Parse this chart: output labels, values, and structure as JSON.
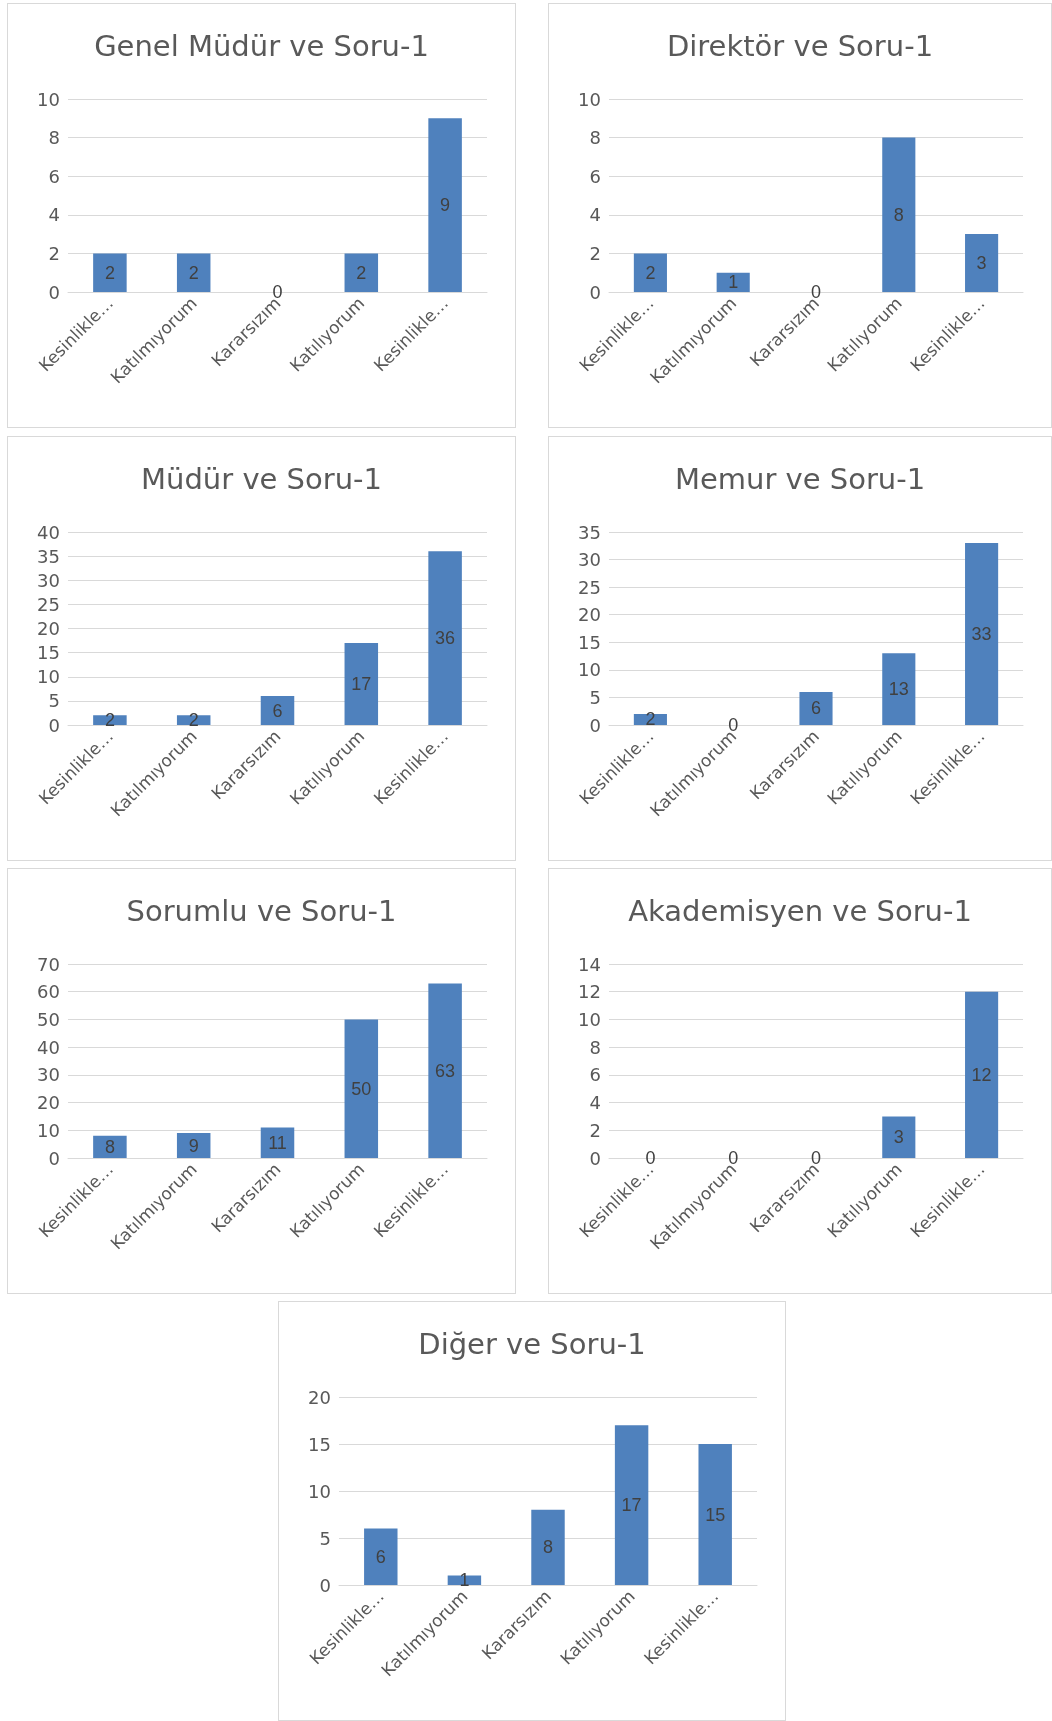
{
  "chart_data": [
    {
      "type": "bar",
      "title": "Genel Müdür ve Soru-1",
      "categories": [
        "Kesinlikle…",
        "Katılmıyorum",
        "Kararsızım",
        "Katılıyorum",
        "Kesinlikle…"
      ],
      "values": [
        2,
        2,
        0,
        2,
        9
      ],
      "color": "#4f81bd",
      "ylim": [
        0,
        10
      ],
      "yticks": [
        0,
        2,
        4,
        6,
        8,
        10
      ],
      "grid": "y",
      "data_labels": true
    },
    {
      "type": "bar",
      "title": "Direktör ve Soru-1",
      "categories": [
        "Kesinlikle…",
        "Katılmıyorum",
        "Kararsızım",
        "Katılıyorum",
        "Kesinlikle…"
      ],
      "values": [
        2,
        1,
        0,
        8,
        3
      ],
      "color": "#4f81bd",
      "ylim": [
        0,
        10
      ],
      "yticks": [
        0,
        2,
        4,
        6,
        8,
        10
      ],
      "grid": "y",
      "data_labels": true
    },
    {
      "type": "bar",
      "title": "Müdür ve Soru-1",
      "categories": [
        "Kesinlikle…",
        "Katılmıyorum",
        "Kararsızım",
        "Katılıyorum",
        "Kesinlikle…"
      ],
      "values": [
        2,
        2,
        6,
        17,
        36
      ],
      "color": "#4f81bd",
      "ylim": [
        0,
        40
      ],
      "yticks": [
        0,
        5,
        10,
        15,
        20,
        25,
        30,
        35,
        40
      ],
      "grid": "y",
      "data_labels": true
    },
    {
      "type": "bar",
      "title": "Memur ve Soru-1",
      "categories": [
        "Kesinlikle…",
        "Katılmıyorum",
        "Kararsızım",
        "Katılıyorum",
        "Kesinlikle…"
      ],
      "values": [
        2,
        0,
        6,
        13,
        33
      ],
      "color": "#4f81bd",
      "ylim": [
        0,
        35
      ],
      "yticks": [
        0,
        5,
        10,
        15,
        20,
        25,
        30,
        35
      ],
      "grid": "y",
      "data_labels": true
    },
    {
      "type": "bar",
      "title": "Sorumlu ve Soru-1",
      "categories": [
        "Kesinlikle…",
        "Katılmıyorum",
        "Kararsızım",
        "Katılıyorum",
        "Kesinlikle…"
      ],
      "values": [
        8,
        9,
        11,
        50,
        63
      ],
      "color": "#4f81bd",
      "ylim": [
        0,
        70
      ],
      "yticks": [
        0,
        10,
        20,
        30,
        40,
        50,
        60,
        70
      ],
      "grid": "y",
      "data_labels": true
    },
    {
      "type": "bar",
      "title": "Akademisyen ve Soru-1",
      "categories": [
        "Kesinlikle…",
        "Katılmıyorum",
        "Kararsızım",
        "Katılıyorum",
        "Kesinlikle…"
      ],
      "values": [
        0,
        0,
        0,
        3,
        12
      ],
      "color": "#4f81bd",
      "ylim": [
        0,
        14
      ],
      "yticks": [
        0,
        2,
        4,
        6,
        8,
        10,
        12,
        14
      ],
      "grid": "y",
      "data_labels": true
    },
    {
      "type": "bar",
      "title": "Diğer ve Soru-1",
      "categories": [
        "Kesinlikle…",
        "Katılmıyorum",
        "Kararsızım",
        "Katılıyorum",
        "Kesinlikle…"
      ],
      "values": [
        6,
        1,
        8,
        17,
        15
      ],
      "color": "#4f81bd",
      "ylim": [
        0,
        20
      ],
      "yticks": [
        0,
        5,
        10,
        15,
        20
      ],
      "grid": "y",
      "data_labels": true
    }
  ]
}
